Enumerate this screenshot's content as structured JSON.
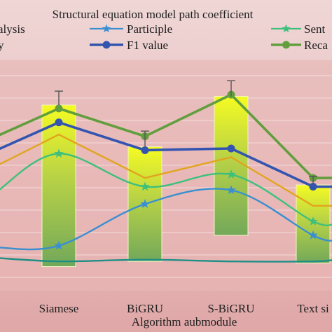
{
  "chart_data": {
    "type": "line",
    "title": "Structural equation model path coefficient",
    "xlabel": "Algorithm aubmodule",
    "ylabel": "",
    "categories": [
      "Siamese",
      "BiGRU",
      "S-BiGRU",
      "Text si"
    ],
    "ylim": [
      0,
      1
    ],
    "grid": true,
    "legend_position": "top",
    "series": [
      {
        "name": "alysis",
        "legend_label": "alysis",
        "color": "#1f8f86",
        "marker": "none",
        "smooth": true,
        "values": [
          0.08,
          0.09,
          0.08,
          0.08
        ],
        "lead_in": 0.1,
        "tail": 0.09
      },
      {
        "name": "Participle",
        "legend_label": "Participle",
        "color": "#3a8fd0",
        "marker": "star",
        "smooth": true,
        "values": [
          0.17,
          0.41,
          0.49,
          0.23
        ],
        "lead_in": 0.16,
        "tail": 0.2
      },
      {
        "name": "Sent",
        "legend_label": "Sent",
        "color": "#3ec07c",
        "marker": "star",
        "smooth": true,
        "values": [
          0.7,
          0.51,
          0.58,
          0.31
        ],
        "lead_in": 0.48,
        "tail": 0.3
      },
      {
        "name": "y",
        "legend_label": "y",
        "color": "#e1a51f",
        "marker": "none",
        "smooth": false,
        "values": [
          0.81,
          0.56,
          0.68,
          0.4
        ],
        "lead_in": 0.63,
        "tail": 0.4
      },
      {
        "name": "F1 value",
        "legend_label": "F1 value",
        "color": "#3355b0",
        "marker": "circle",
        "smooth": false,
        "values": [
          0.88,
          0.72,
          0.73,
          0.51
        ],
        "lead_in": 0.72,
        "tail": 0.51
      },
      {
        "name": "Reca",
        "legend_label": "Reca",
        "color": "#639e3e",
        "marker": "circle",
        "smooth": false,
        "values": [
          0.96,
          0.8,
          1.04,
          0.56
        ],
        "lead_in": 0.8,
        "tail": 0.56
      }
    ],
    "bars": {
      "low": [
        0.05,
        0.08,
        0.23,
        0.07
      ],
      "high": [
        0.98,
        0.74,
        1.03,
        0.52
      ]
    },
    "error_bars": [
      0.08,
      0.09,
      0.09,
      0.05
    ]
  }
}
